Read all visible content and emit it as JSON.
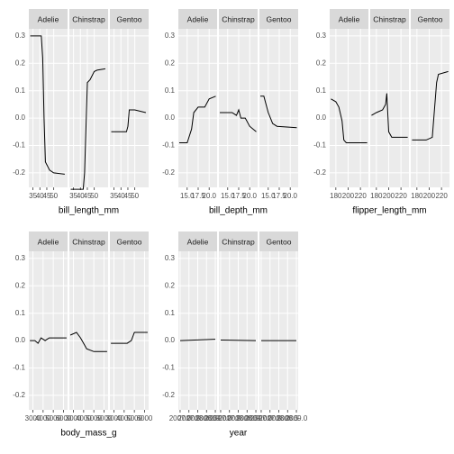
{
  "chart_data": [
    {
      "type": "line",
      "x_label": "bill_length_mm",
      "color": "#000000",
      "ylim": [
        -0.253,
        0.326
      ],
      "yticks": [
        -0.2,
        -0.1,
        {
          "value": 0,
          "label": "0.0"
        },
        0.1,
        0.2,
        0.3
      ],
      "xlim": [
        32,
        60
      ],
      "xticks": [
        35,
        40,
        45,
        50
      ],
      "facets": [
        {
          "name": "Adelie",
          "x": [
            33,
            41,
            42,
            43,
            44,
            47,
            50,
            58
          ],
          "values": [
            0.3,
            0.3,
            0.22,
            0.0,
            -0.16,
            -0.19,
            -0.2,
            -0.205
          ]
        },
        {
          "name": "Chinstrap",
          "x": [
            33,
            42,
            43,
            45,
            47,
            50,
            52,
            58
          ],
          "values": [
            -0.26,
            -0.26,
            -0.2,
            0.13,
            0.14,
            0.17,
            0.175,
            0.18
          ]
        },
        {
          "name": "Gentoo",
          "x": [
            33,
            44,
            45,
            46,
            50,
            58
          ],
          "values": [
            -0.05,
            -0.05,
            -0.03,
            0.03,
            0.03,
            0.02
          ]
        }
      ]
    },
    {
      "type": "line",
      "x_label": "bill_depth_mm",
      "color": "#000000",
      "ylim": [
        -0.253,
        0.326
      ],
      "yticks": [
        -0.2,
        -0.1,
        {
          "value": 0,
          "label": "0.0"
        },
        0.1,
        0.2,
        0.3
      ],
      "xlim": [
        13,
        21.8
      ],
      "xticks": [
        {
          "value": 15,
          "label": "15.0"
        },
        17.5,
        {
          "value": 20,
          "label": "20.0"
        }
      ],
      "facets": [
        {
          "name": "Adelie",
          "x": [
            13.2,
            15,
            16,
            16.5,
            17.5,
            19,
            20,
            21.5
          ],
          "values": [
            -0.09,
            -0.09,
            -0.04,
            0.02,
            0.04,
            0.04,
            0.07,
            0.08
          ]
        },
        {
          "name": "Chinstrap",
          "x": [
            13.2,
            16,
            17,
            17.5,
            18,
            19,
            20,
            21.5
          ],
          "values": [
            0.02,
            0.02,
            0.01,
            0.03,
            0.0,
            0.0,
            -0.03,
            -0.05
          ]
        },
        {
          "name": "Gentoo",
          "x": [
            13.2,
            14,
            15,
            16,
            17,
            21.5
          ],
          "values": [
            0.08,
            0.08,
            0.02,
            -0.02,
            -0.03,
            -0.035
          ]
        }
      ]
    },
    {
      "type": "line",
      "x_label": "flipper_length_mm",
      "color": "#000000",
      "ylim": [
        -0.253,
        0.326
      ],
      "yticks": [
        -0.2,
        -0.1,
        {
          "value": 0,
          "label": "0.0"
        },
        0.1,
        0.2,
        0.3
      ],
      "xlim": [
        170,
        233
      ],
      "xticks": [
        180,
        200,
        220
      ],
      "facets": [
        {
          "name": "Adelie",
          "x": [
            172,
            180,
            185,
            190,
            193,
            197,
            231
          ],
          "values": [
            0.07,
            0.06,
            0.04,
            -0.01,
            -0.08,
            -0.09,
            -0.09
          ]
        },
        {
          "name": "Chinstrap",
          "x": [
            172,
            180,
            190,
            195,
            197,
            200,
            205,
            231
          ],
          "values": [
            0.01,
            0.02,
            0.03,
            0.05,
            0.09,
            -0.05,
            -0.07,
            -0.07
          ]
        },
        {
          "name": "Gentoo",
          "x": [
            172,
            195,
            205,
            212,
            215,
            231
          ],
          "values": [
            -0.08,
            -0.08,
            -0.07,
            0.13,
            0.16,
            0.17
          ]
        }
      ]
    },
    {
      "type": "line",
      "x_label": "body_mass_g",
      "color": "#000000",
      "ylim": [
        -0.253,
        0.326
      ],
      "yticks": [
        -0.2,
        -0.1,
        {
          "value": 0,
          "label": "0.0"
        },
        0.1,
        0.2,
        0.3
      ],
      "xlim": [
        2600,
        6400
      ],
      "xticks": [
        3000,
        4000,
        5000,
        6000
      ],
      "facets": [
        {
          "name": "Adelie",
          "x": [
            2700,
            3200,
            3500,
            3800,
            4200,
            4600,
            6300
          ],
          "values": [
            0.0,
            0.0,
            -0.01,
            0.01,
            0.0,
            0.01,
            0.01
          ]
        },
        {
          "name": "Chinstrap",
          "x": [
            2700,
            3300,
            3700,
            4000,
            4300,
            5000,
            6300
          ],
          "values": [
            0.02,
            0.03,
            0.01,
            -0.01,
            -0.03,
            -0.04,
            -0.04
          ]
        },
        {
          "name": "Gentoo",
          "x": [
            2700,
            4300,
            4700,
            5000,
            6300
          ],
          "values": [
            -0.01,
            -0.01,
            0.0,
            0.03,
            0.03
          ]
        }
      ]
    },
    {
      "type": "line",
      "x_label": "year",
      "color": "#000000",
      "ylim": [
        -0.253,
        0.326
      ],
      "yticks": [
        -0.2,
        -0.1,
        {
          "value": 0,
          "label": "0.0"
        },
        0.1,
        0.2,
        0.3
      ],
      "xlim": [
        2006.9,
        2009.1
      ],
      "xticks": [
        {
          "value": 2007,
          "label": "2007.0"
        },
        2007.5,
        {
          "value": 2008,
          "label": "2008.0"
        },
        2008.5,
        {
          "value": 2009,
          "label": "2009.0"
        }
      ],
      "facets": [
        {
          "name": "Adelie",
          "x": [
            2007,
            2009
          ],
          "values": [
            0.0,
            0.005
          ]
        },
        {
          "name": "Chinstrap",
          "x": [
            2007,
            2009
          ],
          "values": [
            0.002,
            0.0
          ]
        },
        {
          "name": "Gentoo",
          "x": [
            2007,
            2009
          ],
          "values": [
            0.0,
            0.0
          ]
        }
      ]
    }
  ]
}
